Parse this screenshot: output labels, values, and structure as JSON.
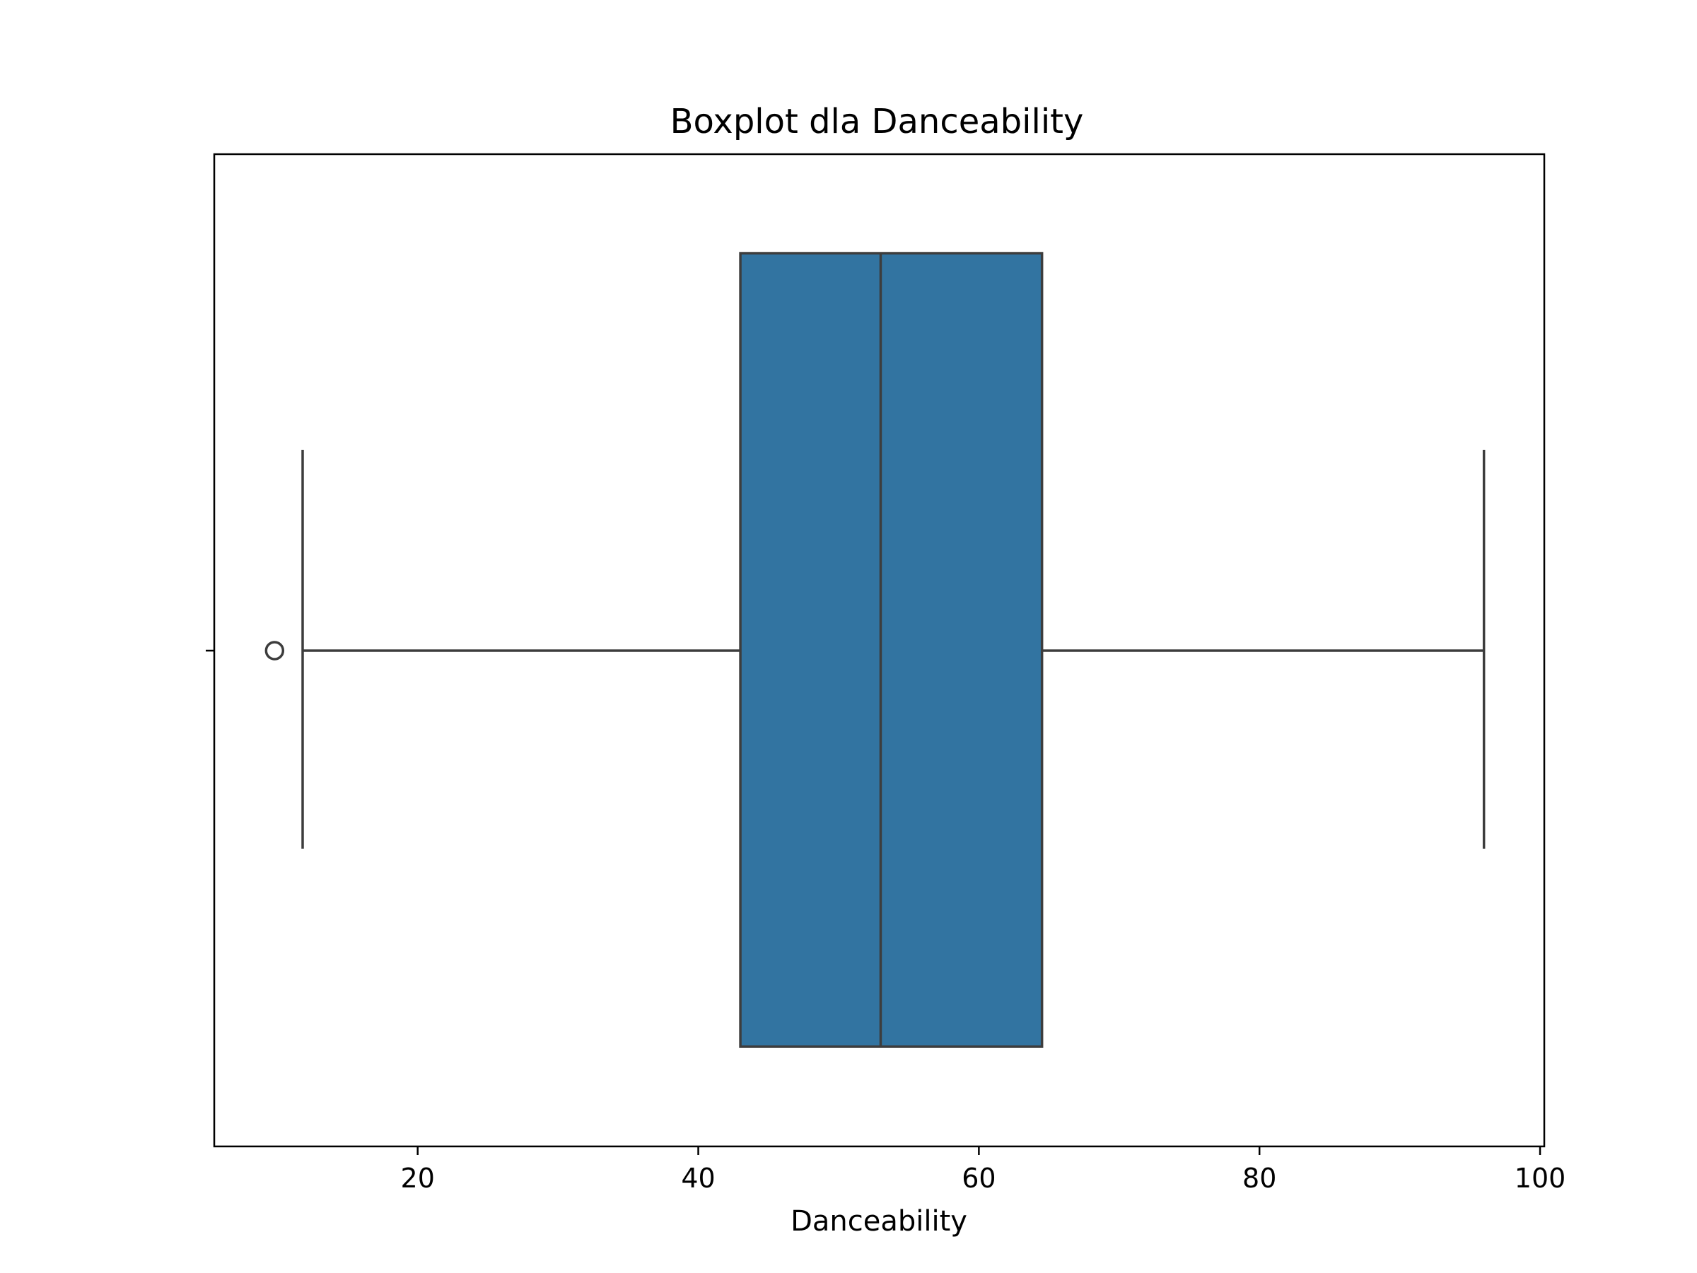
{
  "chart_data": {
    "type": "boxplot",
    "title": "Boxplot dla Danceability",
    "xlabel": "Danceability",
    "ylabel": "",
    "xlim": [
      5.5,
      100.3
    ],
    "xticks": [
      20,
      40,
      60,
      80,
      100
    ],
    "xtick_labels": [
      "20",
      "40",
      "60",
      "80",
      "100"
    ],
    "grid": false,
    "orientation": "horizontal",
    "box": {
      "whisker_low": 11.8,
      "q1": 43,
      "median": 53,
      "q3": 64.5,
      "whisker_high": 96,
      "outliers": [
        9.8
      ]
    },
    "colors": {
      "box_fill": "#3274a1",
      "line": "#3d3d3d",
      "axes": "#000000"
    }
  }
}
